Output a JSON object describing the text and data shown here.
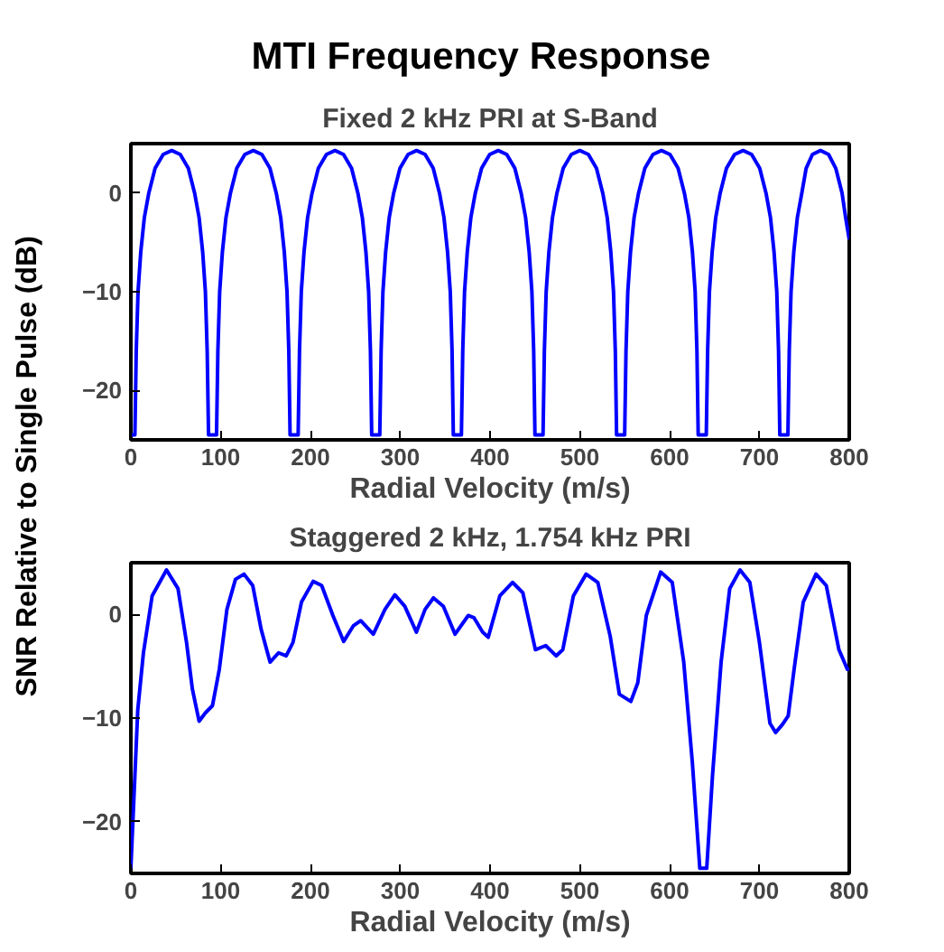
{
  "chart_data": [
    {
      "type": "line",
      "title": "MTI Frequency Response",
      "subtitle": "Fixed 2 kHz PRI at S-Band",
      "xlabel": "Radial Velocity (m/s)",
      "ylabel": "SNR Relative to Single Pulse (dB)",
      "xlim": [
        0,
        800
      ],
      "ylim": [
        -25,
        5
      ],
      "xticks": [
        0,
        100,
        200,
        300,
        400,
        500,
        600,
        700,
        800
      ],
      "yticks": [
        -20,
        -10,
        0
      ],
      "grid": false,
      "line_style": "solid",
      "series": [
        {
          "color": "#0000ff",
          "x": [
            0,
            4.5,
            6,
            8,
            11,
            15,
            20,
            27,
            36,
            45.5,
            55,
            64,
            71,
            76,
            80,
            83,
            85,
            86.5,
            95.4,
            96.9,
            98.9,
            101.9,
            105.9,
            110.9,
            117.9,
            126.9,
            136.4,
            145.9,
            154.9,
            161.9,
            166.9,
            170.9,
            173.9,
            175.9,
            177.3,
            186.3,
            187.8,
            189.8,
            192.8,
            196.8,
            201.8,
            208.8,
            217.8,
            227.3,
            236.8,
            245.8,
            252.8,
            257.8,
            261.8,
            264.8,
            266.8,
            268.2,
            277.2,
            278.7,
            280.7,
            283.7,
            287.7,
            292.7,
            299.7,
            308.7,
            318.2,
            327.7,
            336.7,
            343.7,
            348.7,
            352.7,
            355.7,
            357.7,
            359.1,
            368.1,
            369.6,
            371.6,
            374.6,
            378.6,
            383.6,
            390.6,
            399.6,
            409.1,
            418.6,
            427.6,
            434.6,
            439.6,
            443.6,
            446.6,
            448.6,
            450.0,
            459.0,
            460.5,
            462.5,
            465.5,
            469.5,
            474.5,
            481.5,
            490.5,
            500.0,
            509.5,
            518.5,
            525.5,
            530.5,
            534.5,
            537.5,
            539.5,
            540.9,
            549.9,
            551.4,
            553.4,
            556.4,
            560.4,
            565.4,
            572.4,
            581.4,
            590.9,
            600.4,
            609.4,
            616.4,
            621.4,
            625.4,
            628.4,
            630.4,
            631.8,
            640.8,
            642.3,
            644.3,
            647.3,
            651.3,
            656.3,
            663.3,
            672.3,
            681.8,
            691.3,
            700.3,
            707.3,
            712.3,
            716.3,
            719.3,
            721.3,
            722.7,
            731.7,
            733.2,
            735.2,
            738.2,
            742.2,
            747.2,
            752,
            759,
            768,
            777,
            785,
            792,
            796,
            800
          ],
          "values": [
            -24.5,
            -24.5,
            -16,
            -10,
            -6,
            -2.5,
            0,
            2.5,
            3.9,
            4.3,
            3.9,
            2.5,
            0,
            -2.5,
            -6,
            -10,
            -16,
            -24.5,
            -24.5,
            -16,
            -10,
            -6,
            -2.5,
            0,
            2.5,
            3.9,
            4.3,
            3.9,
            2.5,
            0,
            -2.5,
            -6,
            -10,
            -16,
            -24.5,
            -24.5,
            -16,
            -10,
            -6,
            -2.5,
            0,
            2.5,
            3.9,
            4.3,
            3.9,
            2.5,
            0,
            -2.5,
            -6,
            -10,
            -16,
            -24.5,
            -24.5,
            -16,
            -10,
            -6,
            -2.5,
            0,
            2.5,
            3.9,
            4.3,
            3.9,
            2.5,
            0,
            -2.5,
            -6,
            -10,
            -16,
            -24.5,
            -24.5,
            -16,
            -10,
            -6,
            -2.5,
            0,
            2.5,
            3.9,
            4.3,
            3.9,
            2.5,
            0,
            -2.5,
            -6,
            -10,
            -16,
            -24.5,
            -24.5,
            -16,
            -10,
            -6,
            -2.5,
            0,
            2.5,
            3.9,
            4.3,
            3.9,
            2.5,
            0,
            -2.5,
            -6,
            -10,
            -16,
            -24.5,
            -24.5,
            -16,
            -10,
            -6,
            -2.5,
            0,
            2.5,
            3.9,
            4.3,
            3.9,
            2.5,
            0,
            -2.5,
            -6,
            -10,
            -16,
            -24.5,
            -24.5,
            -16,
            -10,
            -6,
            -2.5,
            0,
            2.5,
            3.9,
            4.3,
            3.9,
            2.5,
            0,
            -2.5,
            -6,
            -10,
            -16,
            -24.5,
            -24.5,
            -16,
            -10,
            -6,
            -2.5,
            0,
            2.5,
            3.9,
            4.3,
            3.9,
            2.5,
            0,
            -2.5,
            -4.7
          ]
        }
      ]
    },
    {
      "type": "line",
      "title": "Staggered 2 kHz, 1.754 kHz PRI",
      "xlabel": "Radial Velocity (m/s)",
      "xlim": [
        0,
        800
      ],
      "ylim": [
        -25,
        5
      ],
      "xticks": [
        0,
        100,
        200,
        300,
        400,
        500,
        600,
        700,
        800
      ],
      "yticks": [
        -20,
        -10,
        0
      ],
      "grid": false,
      "line_style": "solid",
      "series": [
        {
          "color": "#0000ff",
          "x": [
            0,
            7.7,
            14,
            23.7,
            39.7,
            52.5,
            62,
            68.5,
            76,
            83,
            90.9,
            98.5,
            107,
            116.5,
            126,
            135.7,
            145,
            155,
            164.5,
            173,
            180.5,
            190,
            203,
            212.5,
            225,
            237,
            247.7,
            256,
            270,
            283,
            294,
            305,
            318,
            327.7,
            337,
            348,
            361,
            375.7,
            382,
            391.7,
            398,
            410.9,
            425,
            436.5,
            450.5,
            462,
            473.6,
            481,
            492.8,
            507,
            520,
            533.8,
            544,
            556.8,
            564.5,
            574,
            590,
            602.9,
            615.7,
            625.3,
            633.6,
            641.3,
            647.7,
            657.3,
            666.9,
            678.4,
            689.3,
            700,
            711.7,
            718,
            725.8,
            732,
            738.6,
            748.8,
            763,
            774.4,
            788.5,
            798,
            800
          ],
          "values": [
            -24.5,
            -9.2,
            -3.7,
            1.8,
            4.3,
            2.5,
            -2.7,
            -7.2,
            -10.3,
            -9.5,
            -8.8,
            -5.3,
            0.5,
            3.4,
            3.9,
            2.8,
            -1.4,
            -4.6,
            -3.7,
            -4.0,
            -2.7,
            1.2,
            3.2,
            2.8,
            -0.1,
            -2.6,
            -1.1,
            -0.6,
            -1.9,
            0.5,
            1.9,
            0.8,
            -1.7,
            0.5,
            1.6,
            0.8,
            -1.9,
            -0.1,
            -0.3,
            -1.7,
            -2.2,
            1.8,
            3.1,
            2.1,
            -3.4,
            -3.0,
            -4.0,
            -3.4,
            1.8,
            3.9,
            3.1,
            -2.1,
            -7.7,
            -8.4,
            -6.6,
            -0.1,
            4.1,
            3.1,
            -4.6,
            -14.3,
            -24.5,
            -24.5,
            -15.6,
            -4.6,
            2.5,
            4.3,
            3.1,
            -2.7,
            -10.5,
            -11.4,
            -10.6,
            -9.8,
            -5.3,
            1.2,
            3.9,
            2.8,
            -3.4,
            -5.3,
            -5.3
          ]
        }
      ]
    }
  ]
}
